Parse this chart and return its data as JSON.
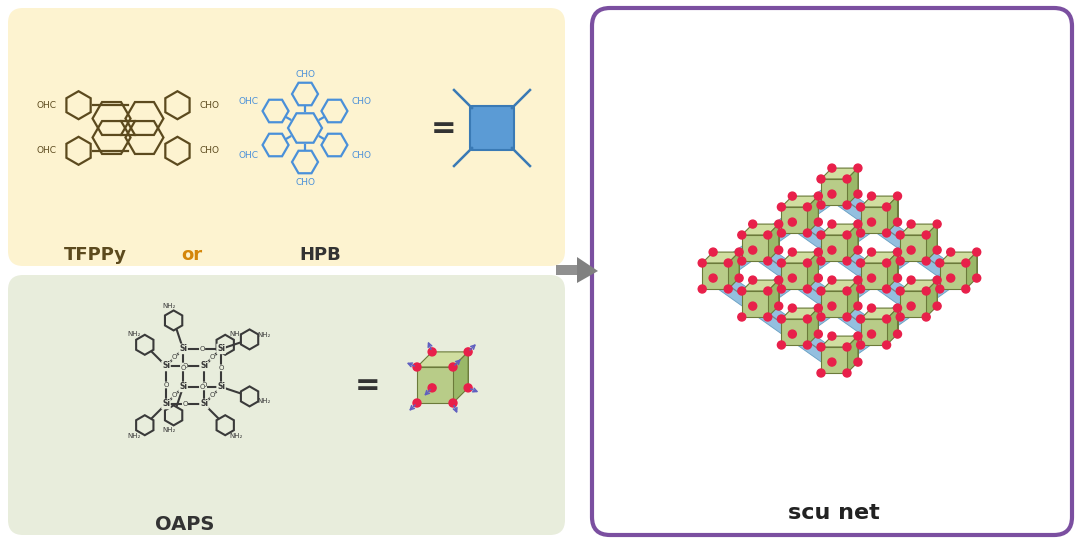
{
  "bg_color": "#ffffff",
  "top_panel_color": "#fdf3d0",
  "bottom_panel_color": "#e8eddc",
  "right_panel_color": "#ffffff",
  "right_panel_border": "#7b4fa0",
  "tfppy_label": "TFPPy",
  "or_label": "or",
  "hpb_label": "HPB",
  "oaps_label": "OAPS",
  "scu_net_label": "scu net",
  "or_color": "#d4860a",
  "tfppy_color": "#5c4a1e",
  "hpb_color": "#4a90d9",
  "oaps_color": "#3a3a3a",
  "cube_face_color": "#b8cc88",
  "cube_edge_color": "#6b7a3a",
  "cube_top_color": "#d0dea0",
  "cube_side_color": "#9ab868",
  "node_color": "#e8204a",
  "link_color": "#7ab0d8",
  "link_edge_color": "#5090b8",
  "arrow_color": "#6060c0",
  "gray_arrow_color": "#808080",
  "square_node_fill": "#5b9bd5",
  "square_node_edge": "#3a7ab5",
  "label_fontsize": 13,
  "or_fontsize": 13,
  "scu_fontsize": 14
}
